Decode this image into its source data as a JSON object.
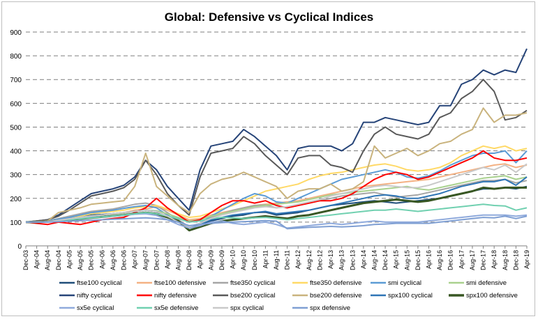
{
  "chart_data": {
    "type": "line",
    "title": "Global: Defensive vs Cyclical Indices",
    "xlabel": "",
    "ylabel": "",
    "ylim": [
      0,
      900
    ],
    "yticks": [
      0,
      100,
      200,
      300,
      400,
      500,
      600,
      700,
      800,
      900
    ],
    "grid": "horizontal dashed",
    "legend_position": "bottom",
    "x": [
      "Dec-03",
      "Apr-04",
      "Aug-04",
      "Dec-04",
      "Apr-05",
      "Aug-05",
      "Dec-05",
      "Apr-06",
      "Aug-06",
      "Dec-06",
      "Apr-07",
      "Aug-07",
      "Dec-07",
      "Apr-08",
      "Aug-08",
      "Dec-08",
      "Apr-09",
      "Aug-09",
      "Dec-09",
      "Apr-10",
      "Aug-10",
      "Dec-10",
      "Apr-11",
      "Aug-11",
      "Dec-11",
      "Apr-12",
      "Aug-12",
      "Dec-12",
      "Apr-13",
      "Aug-13",
      "Dec-13",
      "Apr-14",
      "Aug-14",
      "Dec-14",
      "Apr-15",
      "Aug-15",
      "Dec-15",
      "Apr-16",
      "Aug-16",
      "Dec-16",
      "Apr-17",
      "Aug-17",
      "Dec-17",
      "Apr-18",
      "Aug-18",
      "Dec-18",
      "Apr-19"
    ],
    "series": [
      {
        "name": "ftse100 cyclical",
        "color": "#1f4e79",
        "values": [
          100,
          100,
          102,
          110,
          115,
          120,
          130,
          132,
          135,
          138,
          145,
          150,
          145,
          120,
          100,
          75,
          85,
          105,
          115,
          125,
          130,
          140,
          142,
          130,
          135,
          140,
          150,
          160,
          170,
          175,
          180,
          185,
          190,
          185,
          180,
          185,
          190,
          195,
          200,
          210,
          220,
          230,
          240,
          240,
          245,
          240,
          250
        ]
      },
      {
        "name": "ftse100 defensive",
        "color": "#f4b183",
        "values": [
          100,
          100,
          102,
          108,
          112,
          118,
          125,
          130,
          135,
          140,
          150,
          155,
          165,
          150,
          130,
          110,
          115,
          130,
          140,
          150,
          160,
          170,
          175,
          180,
          185,
          190,
          200,
          210,
          220,
          230,
          240,
          250,
          255,
          260,
          265,
          270,
          275,
          280,
          290,
          300,
          310,
          320,
          330,
          340,
          345,
          330,
          340
        ]
      },
      {
        "name": "ftse350 cyclical",
        "color": "#a5a5a5",
        "values": [
          100,
          102,
          105,
          115,
          125,
          135,
          145,
          150,
          155,
          165,
          175,
          180,
          170,
          140,
          110,
          80,
          95,
          120,
          135,
          150,
          160,
          170,
          172,
          160,
          165,
          170,
          180,
          190,
          200,
          210,
          215,
          220,
          225,
          215,
          205,
          210,
          215,
          225,
          235,
          245,
          255,
          265,
          275,
          275,
          280,
          265,
          275
        ]
      },
      {
        "name": "ftse350 defensive",
        "color": "#ffd966",
        "values": [
          100,
          100,
          102,
          110,
          118,
          125,
          135,
          140,
          145,
          150,
          160,
          165,
          170,
          155,
          135,
          120,
          125,
          140,
          155,
          170,
          190,
          210,
          230,
          240,
          250,
          260,
          280,
          295,
          305,
          310,
          320,
          330,
          340,
          345,
          335,
          320,
          315,
          320,
          330,
          350,
          380,
          400,
          420,
          410,
          420,
          400,
          410
        ]
      },
      {
        "name": "smi cyclical",
        "color": "#5b9bd5",
        "values": [
          100,
          102,
          105,
          112,
          120,
          130,
          140,
          145,
          150,
          158,
          165,
          170,
          160,
          130,
          105,
          80,
          95,
          125,
          150,
          175,
          200,
          220,
          210,
          185,
          180,
          200,
          220,
          240,
          260,
          280,
          290,
          300,
          310,
          320,
          310,
          290,
          285,
          295,
          315,
          340,
          360,
          380,
          390,
          390,
          400,
          350,
          400
        ]
      },
      {
        "name": "smi defensive",
        "color": "#a9d18e",
        "values": [
          100,
          100,
          102,
          108,
          114,
          120,
          126,
          130,
          134,
          138,
          145,
          150,
          148,
          135,
          120,
          105,
          110,
          125,
          135,
          145,
          155,
          165,
          170,
          175,
          180,
          185,
          195,
          205,
          215,
          220,
          225,
          230,
          235,
          240,
          245,
          250,
          240,
          235,
          245,
          255,
          265,
          275,
          285,
          290,
          295,
          280,
          290
        ]
      },
      {
        "name": "nifty cyclical",
        "color": "#264478",
        "values": [
          100,
          105,
          110,
          130,
          160,
          190,
          220,
          230,
          240,
          255,
          290,
          360,
          320,
          250,
          200,
          150,
          320,
          420,
          430,
          440,
          490,
          460,
          420,
          380,
          320,
          410,
          420,
          420,
          420,
          400,
          430,
          520,
          520,
          540,
          530,
          520,
          510,
          520,
          590,
          590,
          680,
          700,
          740,
          720,
          740,
          730,
          830
        ]
      },
      {
        "name": "nifty defensive",
        "color": "#ff0000",
        "values": [
          100,
          95,
          90,
          100,
          95,
          90,
          100,
          110,
          115,
          120,
          140,
          160,
          200,
          160,
          130,
          100,
          110,
          140,
          170,
          190,
          190,
          180,
          190,
          170,
          160,
          170,
          180,
          190,
          190,
          200,
          220,
          250,
          280,
          300,
          310,
          300,
          280,
          290,
          310,
          330,
          350,
          370,
          400,
          370,
          360,
          360,
          370
        ]
      },
      {
        "name": "bse200 cyclical",
        "color": "#595959",
        "values": [
          100,
          105,
          110,
          125,
          150,
          180,
          210,
          220,
          230,
          245,
          280,
          360,
          300,
          220,
          170,
          130,
          290,
          390,
          400,
          410,
          460,
          430,
          380,
          340,
          300,
          370,
          380,
          380,
          340,
          330,
          310,
          400,
          470,
          500,
          470,
          460,
          450,
          470,
          540,
          560,
          620,
          650,
          700,
          650,
          530,
          540,
          570
        ]
      },
      {
        "name": "bse200 defensive",
        "color": "#c9b37d",
        "values": [
          100,
          102,
          105,
          140,
          150,
          160,
          175,
          180,
          185,
          190,
          250,
          390,
          250,
          210,
          170,
          140,
          220,
          260,
          280,
          290,
          310,
          290,
          270,
          250,
          200,
          230,
          240,
          240,
          260,
          230,
          240,
          270,
          420,
          370,
          390,
          410,
          380,
          400,
          430,
          440,
          470,
          490,
          580,
          520,
          550,
          550,
          560
        ]
      },
      {
        "name": "spx100 cyclical",
        "color": "#2e75b6",
        "values": [
          100,
          100,
          102,
          108,
          114,
          120,
          126,
          130,
          135,
          140,
          145,
          150,
          145,
          125,
          100,
          80,
          90,
          110,
          120,
          130,
          135,
          140,
          145,
          135,
          140,
          145,
          150,
          160,
          170,
          180,
          190,
          200,
          210,
          215,
          210,
          200,
          200,
          210,
          220,
          235,
          250,
          260,
          270,
          270,
          280,
          255,
          290
        ]
      },
      {
        "name": "spx100 defensive",
        "color": "#385723",
        "values": [
          100,
          100,
          102,
          106,
          110,
          114,
          118,
          122,
          126,
          130,
          135,
          140,
          135,
          120,
          105,
          65,
          80,
          95,
          105,
          110,
          115,
          120,
          125,
          120,
          115,
          125,
          130,
          140,
          150,
          160,
          170,
          180,
          185,
          190,
          195,
          190,
          185,
          190,
          200,
          210,
          220,
          230,
          245,
          240,
          245,
          245,
          245
        ]
      },
      {
        "name": "sx5e cyclical",
        "color": "#8faadc",
        "values": [
          100,
          100,
          102,
          108,
          114,
          118,
          120,
          122,
          125,
          128,
          133,
          135,
          128,
          110,
          90,
          75,
          85,
          100,
          105,
          95,
          90,
          95,
          100,
          90,
          75,
          80,
          85,
          90,
          95,
          90,
          95,
          100,
          105,
          100,
          100,
          100,
          100,
          105,
          110,
          115,
          120,
          125,
          130,
          130,
          130,
          125,
          130
        ]
      },
      {
        "name": "sx5e defensive",
        "color": "#70d0b0",
        "values": [
          100,
          100,
          102,
          106,
          110,
          114,
          118,
          122,
          126,
          130,
          135,
          140,
          135,
          125,
          115,
          100,
          105,
          115,
          120,
          118,
          115,
          118,
          120,
          115,
          110,
          115,
          120,
          125,
          130,
          135,
          140,
          145,
          150,
          150,
          155,
          150,
          145,
          150,
          155,
          160,
          165,
          170,
          175,
          170,
          168,
          150,
          160
        ]
      },
      {
        "name": "spx cyclical",
        "color": "#c9c9c9",
        "values": [
          100,
          100,
          102,
          108,
          114,
          120,
          126,
          130,
          135,
          140,
          145,
          150,
          145,
          125,
          100,
          80,
          95,
          115,
          130,
          140,
          150,
          160,
          165,
          160,
          165,
          175,
          185,
          195,
          210,
          220,
          230,
          240,
          250,
          255,
          250,
          245,
          245,
          255,
          270,
          285,
          300,
          315,
          330,
          320,
          340,
          310,
          345
        ]
      },
      {
        "name": "spx defensive",
        "color": "#7f9fd3",
        "values": [
          100,
          100,
          100,
          102,
          104,
          106,
          108,
          110,
          112,
          114,
          116,
          118,
          115,
          110,
          100,
          85,
          90,
          95,
          98,
          100,
          102,
          104,
          106,
          104,
          72,
          75,
          78,
          80,
          82,
          80,
          82,
          85,
          90,
          92,
          95,
          95,
          95,
          95,
          100,
          105,
          110,
          115,
          120,
          118,
          125,
          115,
          125
        ]
      }
    ]
  }
}
